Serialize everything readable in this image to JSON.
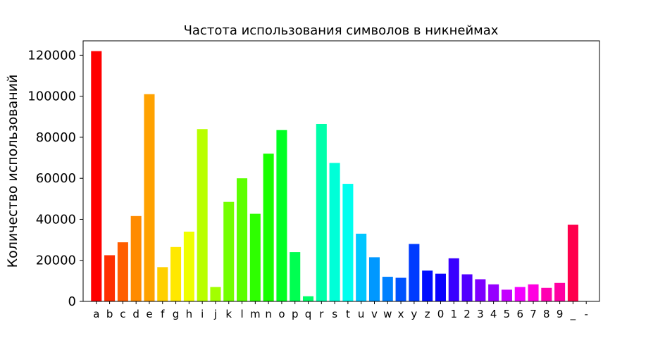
{
  "chart_data": {
    "type": "bar",
    "title": "Частота использования символов в никнеймах",
    "xlabel": "",
    "ylabel": "Количество использований",
    "ylim": [
      0,
      127000
    ],
    "yticks": [
      0,
      20000,
      40000,
      60000,
      80000,
      100000,
      120000
    ],
    "grid": false,
    "categories": [
      "a",
      "b",
      "c",
      "d",
      "e",
      "f",
      "g",
      "h",
      "i",
      "j",
      "k",
      "l",
      "m",
      "n",
      "o",
      "p",
      "q",
      "r",
      "s",
      "t",
      "u",
      "v",
      "w",
      "x",
      "y",
      "z",
      "0",
      "1",
      "2",
      "3",
      "4",
      "5",
      "6",
      "7",
      "8",
      "9",
      "_",
      "-"
    ],
    "values": [
      122000,
      22500,
      28800,
      41600,
      101000,
      16700,
      26500,
      34000,
      84000,
      7000,
      48500,
      60000,
      42700,
      72000,
      83500,
      24000,
      2500,
      86500,
      67500,
      57300,
      33000,
      21500,
      12000,
      11500,
      28000,
      15000,
      13500,
      21000,
      13200,
      10800,
      8300,
      5700,
      7000,
      8300,
      6600,
      9000,
      37400,
      0
    ],
    "colors": [
      "#ff0000",
      "#ff2e00",
      "#ff5d00",
      "#ff8b00",
      "#ffa200",
      "#ffd000",
      "#ffe800",
      "#f0ff00",
      "#b9ff00",
      "#a2ff00",
      "#73ff00",
      "#5cff00",
      "#2eff00",
      "#17ff00",
      "#00ff22",
      "#00ff51",
      "#00ff68",
      "#00ffaa",
      "#00ffd8",
      "#00ffef",
      "#00c6ff",
      "#0098ff",
      "#0081ff",
      "#0052ff",
      "#003bff",
      "#000dff",
      "#0a00ff",
      "#3900ff",
      "#5000ff",
      "#7e00ff",
      "#9600ff",
      "#c400ff",
      "#f200ff",
      "#ff00e0",
      "#ff00b1",
      "#ff00a2",
      "#ff004c",
      "#ff0036"
    ]
  }
}
